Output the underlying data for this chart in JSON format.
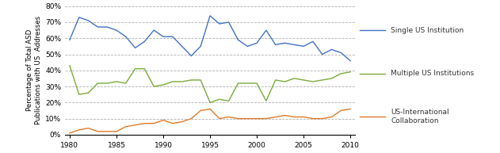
{
  "years": [
    1980,
    1981,
    1982,
    1983,
    1984,
    1985,
    1986,
    1987,
    1988,
    1989,
    1990,
    1991,
    1992,
    1993,
    1994,
    1995,
    1996,
    1997,
    1998,
    1999,
    2000,
    2001,
    2002,
    2003,
    2004,
    2005,
    2006,
    2007,
    2008,
    2009,
    2010
  ],
  "single_us": [
    59,
    73,
    71,
    67,
    67,
    65,
    61,
    54,
    58,
    65,
    61,
    61,
    55,
    49,
    55,
    74,
    69,
    70,
    59,
    55,
    57,
    65,
    56,
    57,
    56,
    55,
    58,
    50,
    53,
    51,
    46
  ],
  "multiple_us": [
    43,
    25,
    26,
    32,
    32,
    33,
    32,
    41,
    41,
    30,
    31,
    33,
    33,
    34,
    34,
    20,
    22,
    21,
    32,
    32,
    32,
    21,
    34,
    33,
    35,
    34,
    33,
    34,
    35,
    38,
    39
  ],
  "us_intl": [
    1,
    3,
    4,
    2,
    2,
    2,
    5,
    6,
    7,
    7,
    9,
    7,
    8,
    10,
    15,
    16,
    10,
    11,
    10,
    10,
    10,
    10,
    11,
    12,
    11,
    11,
    10,
    10,
    11,
    15,
    16
  ],
  "single_us_color": "#4472C4",
  "multiple_us_color": "#7AAB3A",
  "us_intl_color": "#E07B29",
  "ylabel": "Percentage of Total ASD\nPublications with US  Addresses",
  "ylim": [
    0,
    80
  ],
  "yticks": [
    0,
    10,
    20,
    30,
    40,
    50,
    60,
    70,
    80
  ],
  "xticks": [
    1980,
    1985,
    1990,
    1995,
    2000,
    2005,
    2010
  ],
  "legend_single": "Single US Institution",
  "legend_multiple": "Multiple US Institutions",
  "legend_intl": "US-International\nCollaboration",
  "background_color": "#ffffff",
  "grid_color": "#b0b0b0",
  "line_width": 1.0
}
